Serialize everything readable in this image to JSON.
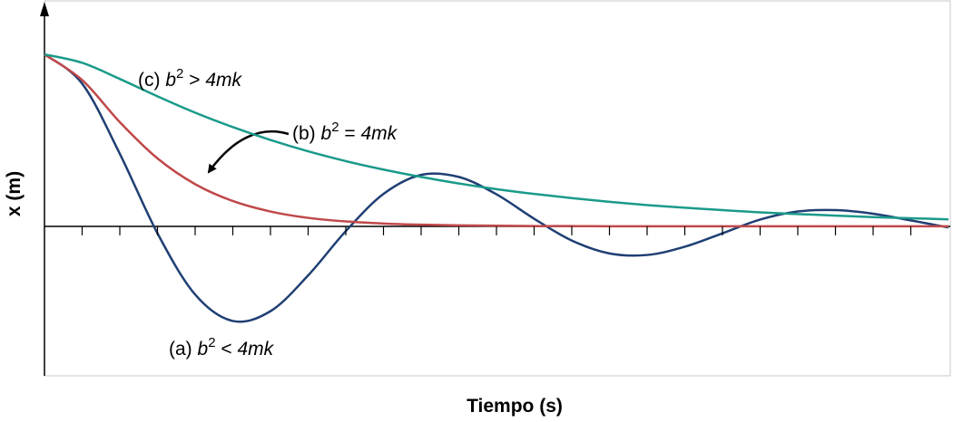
{
  "chart_data": {
    "type": "line",
    "xlabel": "Tiempo (s)",
    "ylabel": "x (m)",
    "x": [
      0,
      1,
      2,
      3,
      4,
      5,
      6,
      7,
      8,
      9,
      10,
      11,
      12,
      13,
      14,
      15,
      16,
      17,
      18,
      19,
      20,
      21,
      22,
      23,
      24
    ],
    "xlim": [
      0,
      24
    ],
    "ylim": [
      -0.87,
      1.29
    ],
    "xticks": [
      1,
      2,
      3,
      4,
      5,
      6,
      7,
      8,
      9,
      10,
      11,
      12,
      13,
      14,
      15,
      16,
      17,
      18,
      19,
      20,
      21,
      22,
      23
    ],
    "series": [
      {
        "color": "#1f3f73",
        "values": [
          1,
          0.83,
          0.422,
          -0.041,
          -0.397,
          -0.551,
          -0.494,
          -0.286,
          -0.028,
          0.188,
          0.299,
          0.287,
          0.186,
          0.044,
          -0.083,
          -0.158,
          -0.167,
          -0.119,
          -0.041,
          0.039,
          0.086,
          0.094,
          0.073,
          0.034,
          -0.007
        ]
      },
      {
        "color": "#c0484a",
        "values": [
          1,
          0.851,
          0.606,
          0.395,
          0.245,
          0.147,
          0.086,
          0.049,
          0.028,
          0.016,
          0.009,
          0.005,
          0.003,
          0.001,
          0.001,
          0,
          0,
          0,
          0,
          0,
          0,
          0,
          0,
          0,
          0
        ]
      },
      {
        "color": "#1a9a8a",
        "values": [
          1,
          0.951,
          0.857,
          0.756,
          0.661,
          0.577,
          0.502,
          0.436,
          0.379,
          0.33,
          0.287,
          0.249,
          0.216,
          0.188,
          0.164,
          0.142,
          0.123,
          0.108,
          0.094,
          0.081,
          0.071,
          0.062,
          0.053,
          0.047,
          0.04
        ]
      }
    ],
    "annotations": [
      {
        "prefix": "(a)",
        "var": "b",
        "exp": "2",
        "rel": "<",
        "rhs": "4mk"
      },
      {
        "prefix": "(b)",
        "var": "b",
        "exp": "2",
        "rel": "=",
        "rhs": "4mk"
      },
      {
        "prefix": "(c)",
        "var": "b",
        "exp": "2",
        "rel": ">",
        "rhs": "4mk"
      }
    ]
  }
}
